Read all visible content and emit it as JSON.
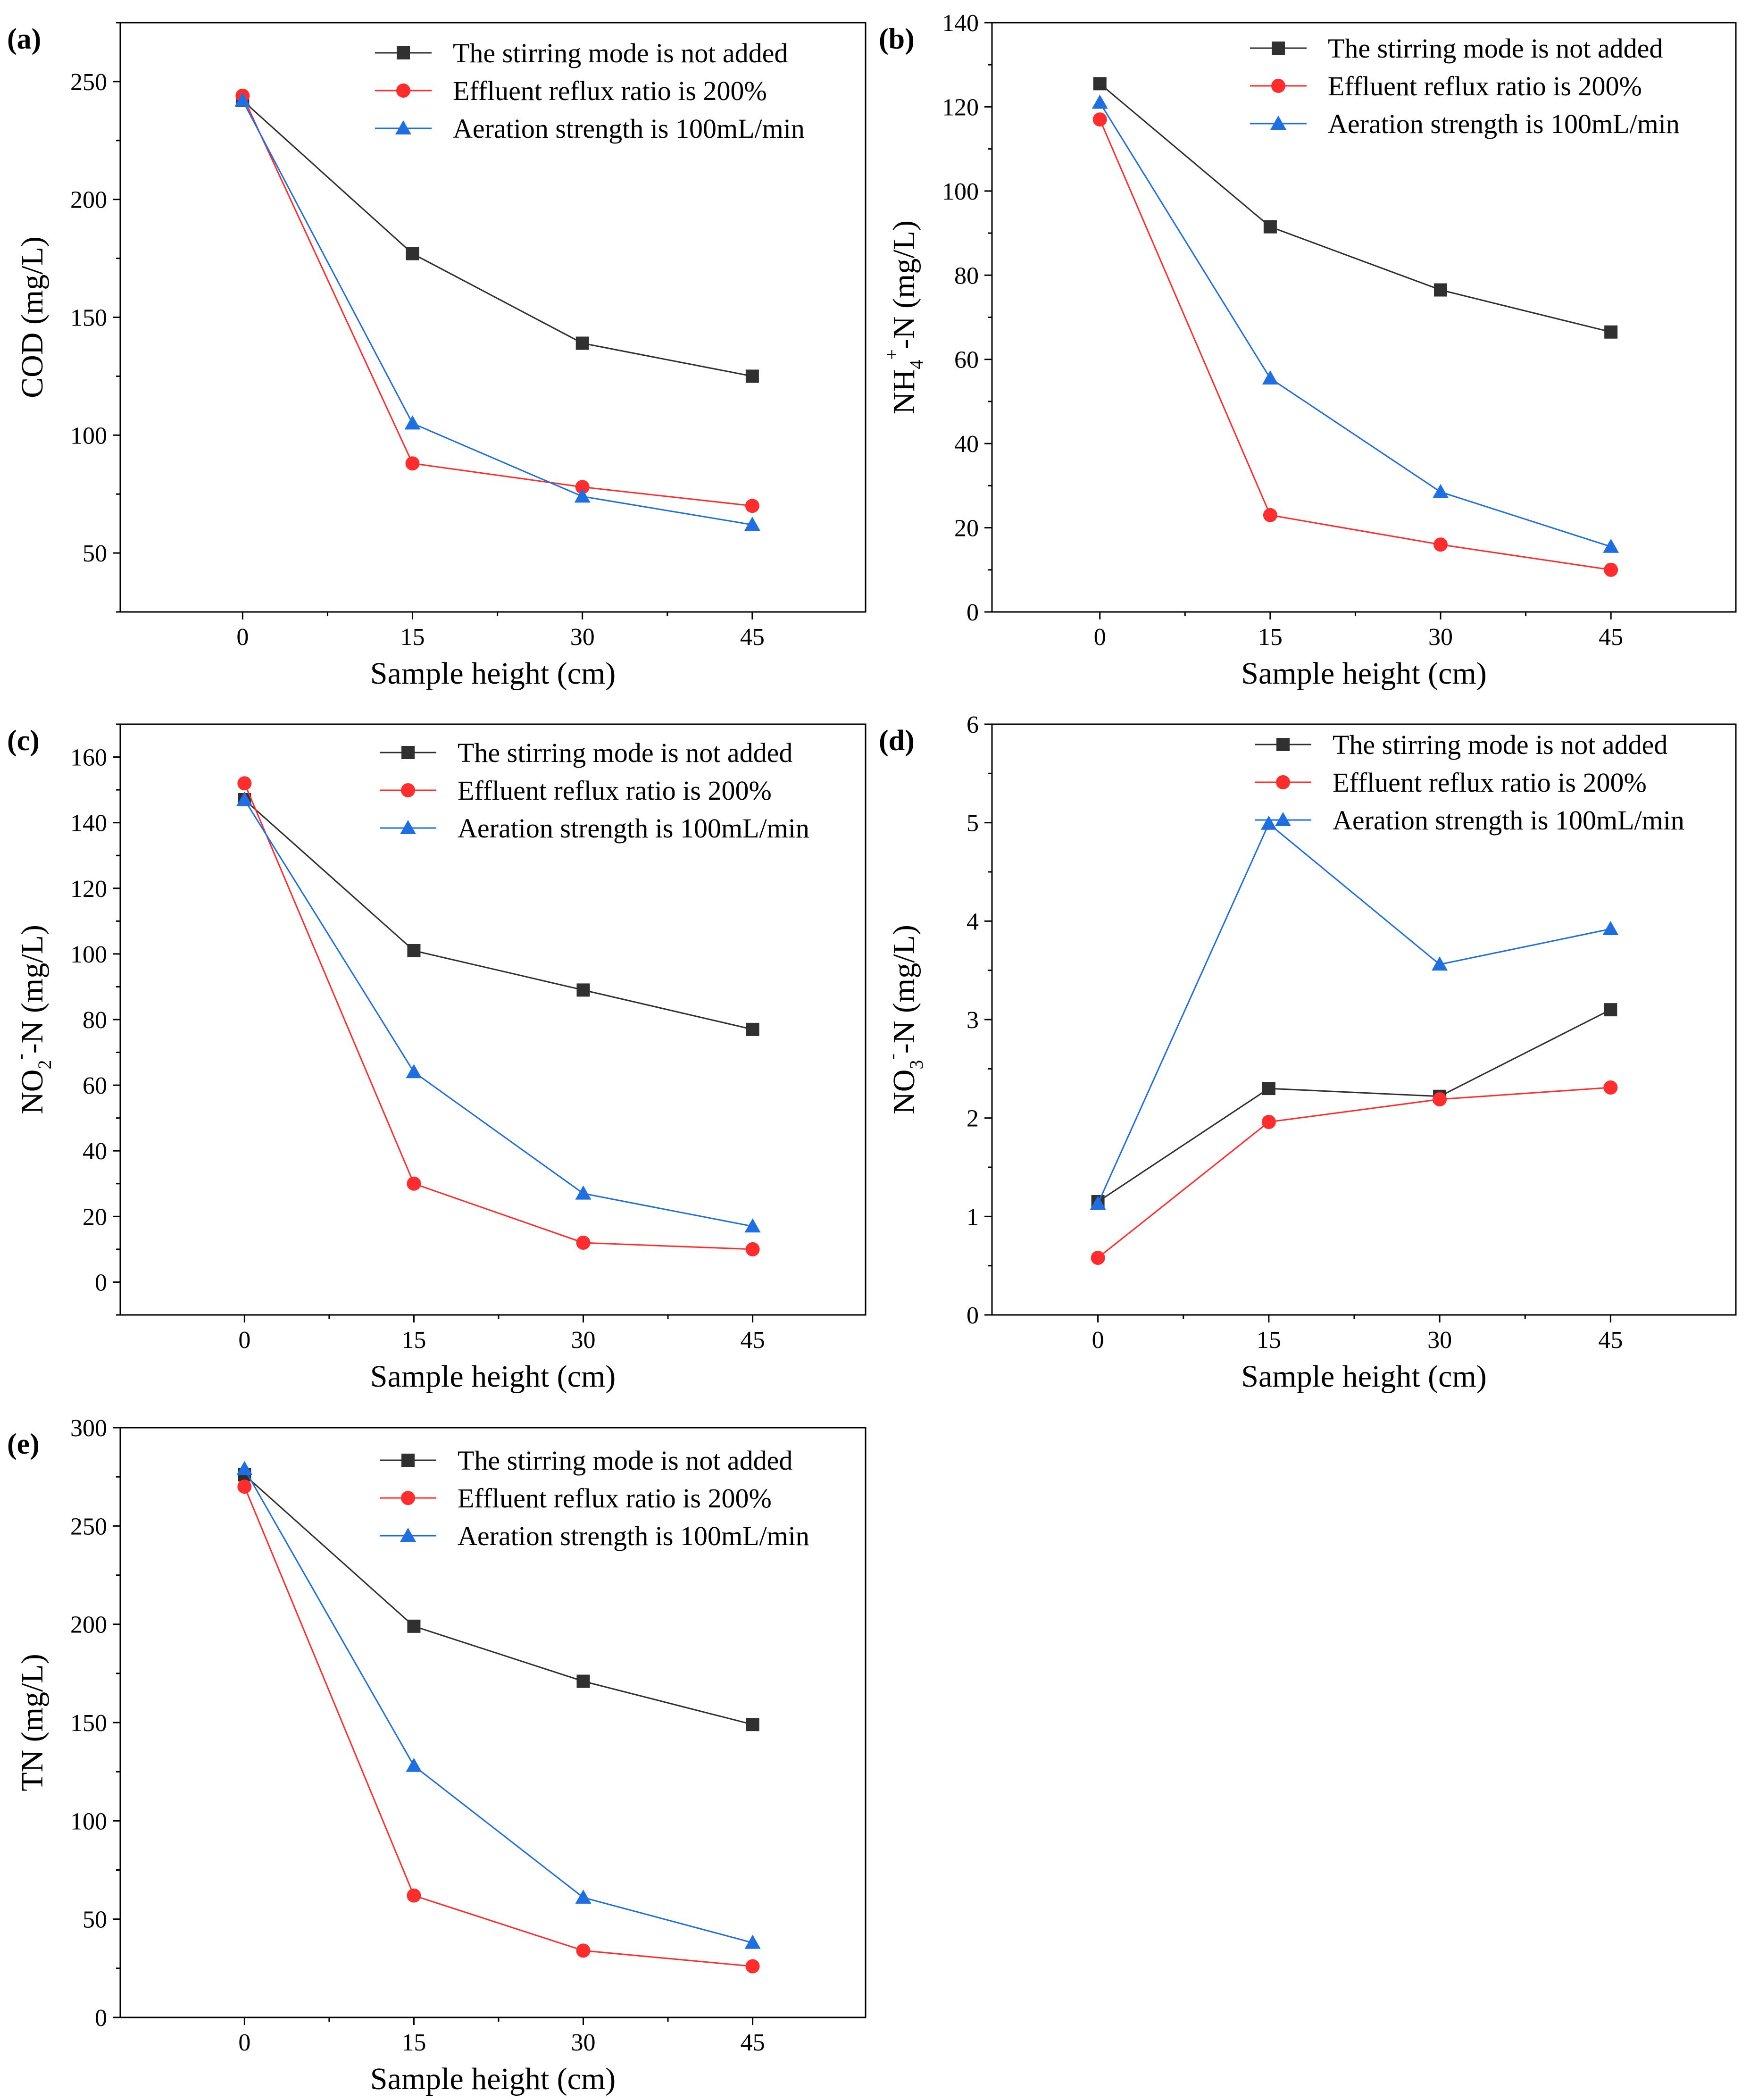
{
  "colors": {
    "series_0": "#303030",
    "series_1": "#ff2d2d",
    "series_2": "#1f6fe0"
  },
  "series_names": [
    "The stirring mode is not added",
    "Effluent reflux ratio is 200%",
    "Aeration strength is 100mL/min"
  ],
  "chart_data": [
    {
      "type": "line",
      "panel": "(a)",
      "xlabel": "Sample height  (cm)",
      "ylabel": "COD  (mg/L)",
      "x": [
        0,
        15,
        30,
        45
      ],
      "xticks": [
        "0",
        "15",
        "30",
        "45"
      ],
      "yticks": [
        50,
        100,
        150,
        200,
        250
      ],
      "ylim": [
        25,
        275
      ],
      "legend_position": "top-right",
      "series": [
        {
          "name": "The stirring mode is not added",
          "marker": "square",
          "values": [
            242,
            177,
            139,
            125
          ]
        },
        {
          "name": "Effluent reflux ratio is 200%",
          "marker": "circle",
          "values": [
            244,
            88,
            78,
            70
          ]
        },
        {
          "name": "Aeration strength is 100mL/min",
          "marker": "triangle",
          "values": [
            242,
            105,
            74,
            62
          ]
        }
      ]
    },
    {
      "type": "line",
      "panel": "(b)",
      "xlabel": "Sample height  (cm)",
      "ylabel": "NH4+-N (mg/L)",
      "ylabel_parts": {
        "a": "NH",
        "sub": "4",
        "sup": "+",
        "b": "-N (mg/L)"
      },
      "x": [
        0,
        15,
        30,
        45
      ],
      "xticks": [
        "0",
        "15",
        "30",
        "45"
      ],
      "yticks": [
        0,
        20,
        40,
        60,
        80,
        100,
        120,
        140
      ],
      "ylim": [
        0,
        140
      ],
      "legend_position": "top-right",
      "series": [
        {
          "name": "The stirring mode is not added",
          "marker": "square",
          "values": [
            125.5,
            91.5,
            76.5,
            66.5
          ]
        },
        {
          "name": "Effluent reflux ratio is 200%",
          "marker": "circle",
          "values": [
            117,
            23,
            16,
            10
          ]
        },
        {
          "name": "Aeration strength is 100mL/min",
          "marker": "triangle",
          "values": [
            121,
            55.5,
            28.5,
            15.5
          ]
        }
      ]
    },
    {
      "type": "line",
      "panel": "(c)",
      "xlabel": "Sample height  (cm)",
      "ylabel": "NO2--N (mg/L)",
      "ylabel_parts": {
        "a": "NO",
        "sub": "2",
        "sup": "-",
        "b": "-N (mg/L)"
      },
      "x": [
        0,
        15,
        30,
        45
      ],
      "xticks": [
        "0",
        "15",
        "30",
        "45"
      ],
      "yticks": [
        0,
        20,
        40,
        60,
        80,
        100,
        120,
        140,
        160
      ],
      "ylim": [
        -10,
        170
      ],
      "legend_position": "top-right",
      "series": [
        {
          "name": "The stirring mode is not added",
          "marker": "square",
          "values": [
            147,
            101,
            89,
            77
          ]
        },
        {
          "name": "Effluent reflux ratio is 200%",
          "marker": "circle",
          "values": [
            152,
            30,
            12,
            10
          ]
        },
        {
          "name": "Aeration strength is 100mL/min",
          "marker": "triangle",
          "values": [
            147,
            64,
            27,
            17
          ]
        }
      ]
    },
    {
      "type": "line",
      "panel": "(d)",
      "xlabel": "Sample height  (cm)",
      "ylabel": "NO3--N  (mg/L)",
      "ylabel_parts": {
        "a": "NO",
        "sub": "3",
        "sup": "-",
        "b": "-N  (mg/L)"
      },
      "x": [
        0,
        15,
        30,
        45
      ],
      "xticks": [
        "0",
        "15",
        "30",
        "45"
      ],
      "yticks": [
        0,
        1,
        2,
        3,
        4,
        5,
        6
      ],
      "ylim": [
        0,
        6
      ],
      "legend_position": "top-right",
      "series": [
        {
          "name": "The stirring mode is not added",
          "marker": "square",
          "values": [
            1.15,
            2.3,
            2.22,
            3.1
          ]
        },
        {
          "name": "Effluent reflux ratio is 200%",
          "marker": "circle",
          "values": [
            0.58,
            1.96,
            2.19,
            2.31
          ]
        },
        {
          "name": "Aeration strength is 100mL/min",
          "marker": "triangle",
          "values": [
            1.13,
            4.99,
            3.56,
            3.92
          ]
        }
      ]
    },
    {
      "type": "line",
      "panel": "(e)",
      "xlabel": "Sample height  (cm)",
      "ylabel": "TN  (mg/L)",
      "x": [
        0,
        15,
        30,
        45
      ],
      "xticks": [
        "0",
        "15",
        "30",
        "45"
      ],
      "yticks": [
        0,
        50,
        100,
        150,
        200,
        250,
        300
      ],
      "ylim": [
        0,
        300
      ],
      "legend_position": "top-right",
      "series": [
        {
          "name": "The stirring mode is not added",
          "marker": "square",
          "values": [
            276,
            199,
            171,
            149
          ]
        },
        {
          "name": "Effluent reflux ratio is 200%",
          "marker": "circle",
          "values": [
            270,
            62,
            34,
            26
          ]
        },
        {
          "name": "Aeration strength is 100mL/min",
          "marker": "triangle",
          "values": [
            279,
            128,
            61,
            38
          ]
        }
      ]
    }
  ]
}
